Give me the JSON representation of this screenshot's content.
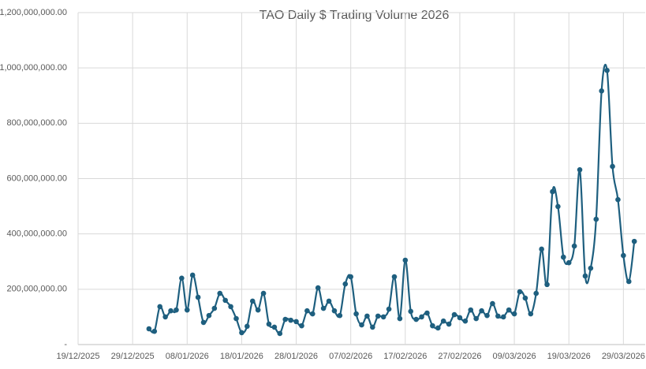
{
  "chart_data": {
    "type": "line",
    "title": "TAO Daily $ Trading Volume 2026",
    "x": [
      "01/01/2026",
      "02/01/2026",
      "03/01/2026",
      "04/01/2026",
      "05/01/2026",
      "06/01/2026",
      "07/01/2026",
      "08/01/2026",
      "09/01/2026",
      "10/01/2026",
      "11/01/2026",
      "12/01/2026",
      "13/01/2026",
      "14/01/2026",
      "15/01/2026",
      "16/01/2026",
      "17/01/2026",
      "18/01/2026",
      "19/01/2026",
      "20/01/2026",
      "21/01/2026",
      "22/01/2026",
      "23/01/2026",
      "24/01/2026",
      "25/01/2026",
      "26/01/2026",
      "27/01/2026",
      "28/01/2026",
      "29/01/2026",
      "30/01/2026",
      "31/01/2026",
      "01/02/2026",
      "02/02/2026",
      "03/02/2026",
      "04/02/2026",
      "05/02/2026",
      "06/02/2026",
      "07/02/2026",
      "08/02/2026",
      "09/02/2026",
      "10/02/2026",
      "11/02/2026",
      "12/02/2026",
      "13/02/2026",
      "14/02/2026",
      "15/02/2026",
      "16/02/2026",
      "17/02/2026",
      "18/02/2026",
      "19/02/2026",
      "20/02/2026",
      "21/02/2026",
      "22/02/2026",
      "23/02/2026",
      "24/02/2026",
      "25/02/2026",
      "26/02/2026",
      "27/02/2026",
      "28/02/2026",
      "01/03/2026",
      "02/03/2026",
      "03/03/2026",
      "04/03/2026",
      "05/03/2026",
      "06/03/2026",
      "07/03/2026",
      "08/03/2026",
      "09/03/2026",
      "10/03/2026",
      "11/03/2026",
      "12/03/2026",
      "13/03/2026",
      "14/03/2026",
      "15/03/2026",
      "16/03/2026",
      "17/03/2026",
      "18/03/2026",
      "19/03/2026",
      "20/03/2026",
      "21/03/2026",
      "22/03/2026",
      "23/03/2026",
      "24/03/2026",
      "25/03/2026",
      "26/03/2026",
      "27/03/2026",
      "28/03/2026",
      "29/03/2026",
      "30/03/2026",
      "31/03/2026"
    ],
    "series": [
      {
        "name": "TAO",
        "color": "#1e5f7f",
        "values": [
          57000000,
          48000000,
          137000000,
          100000000,
          122000000,
          125000000,
          240000000,
          125000000,
          251000000,
          171000000,
          80000000,
          105000000,
          131000000,
          185000000,
          160000000,
          137000000,
          94000000,
          43000000,
          66000000,
          157000000,
          125000000,
          185000000,
          74000000,
          63000000,
          40000000,
          91000000,
          88000000,
          83000000,
          68000000,
          122000000,
          111000000,
          205000000,
          131000000,
          157000000,
          122000000,
          105000000,
          219000000,
          245000000,
          111000000,
          71000000,
          103000000,
          63000000,
          103000000,
          100000000,
          128000000,
          245000000,
          94000000,
          305000000,
          120000000,
          91000000,
          100000000,
          114000000,
          68000000,
          60000000,
          85000000,
          74000000,
          108000000,
          97000000,
          85000000,
          125000000,
          94000000,
          122000000,
          105000000,
          148000000,
          103000000,
          100000000,
          125000000,
          111000000,
          191000000,
          168000000,
          111000000,
          185000000,
          345000000,
          217000000,
          553000000,
          499000000,
          316000000,
          296000000,
          356000000,
          632000000,
          248000000,
          276000000,
          453000000,
          917000000,
          991000000,
          644000000,
          524000000,
          322000000,
          228000000,
          373000000
        ]
      }
    ],
    "xlim": [
      "19/12/2025",
      "02/04/2026"
    ],
    "xticks": [
      "19/12/2025",
      "29/12/2025",
      "08/01/2026",
      "18/01/2026",
      "28/01/2026",
      "07/02/2026",
      "17/02/2026",
      "27/02/2026",
      "09/03/2026",
      "19/03/2026",
      "29/03/2026"
    ],
    "ylim": [
      0,
      1200000000
    ],
    "yticks": [
      {
        "value": 0,
        "label": "-"
      },
      {
        "value": 200000000,
        "label": "200,000,000.00"
      },
      {
        "value": 400000000,
        "label": "400,000,000.00"
      },
      {
        "value": 600000000,
        "label": "600,000,000.00"
      },
      {
        "value": 800000000,
        "label": "800,000,000.00"
      },
      {
        "value": 1000000000,
        "label": "1,000,000,000.00"
      },
      {
        "value": 1200000000,
        "label": "1,200,000,000.00"
      }
    ],
    "grid": true,
    "smooth": true,
    "markers": true
  }
}
